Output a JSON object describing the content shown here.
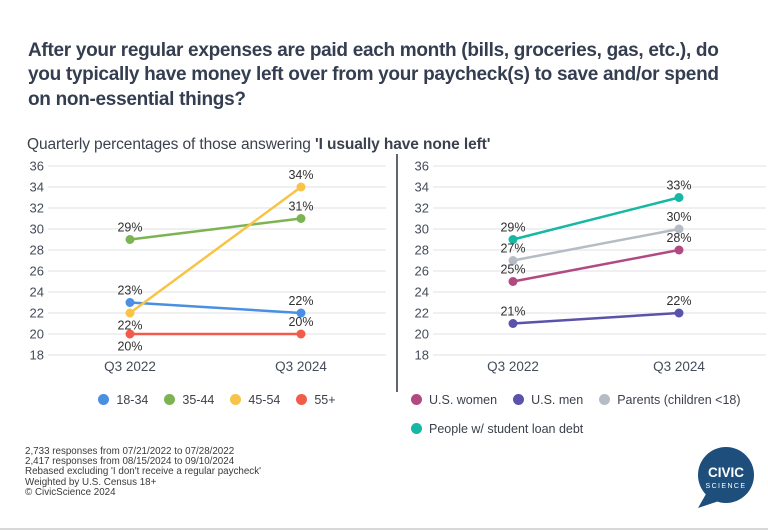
{
  "header": {
    "title": "After your regular expenses are paid each month (bills, groceries, gas, etc.), do you typically have money left over from your paycheck(s) to save and/or spend on non-essential things?",
    "subtitle_regular": "Quarterly percentages of those answering ",
    "subtitle_bold": "'I usually have none left'"
  },
  "chart_data": [
    {
      "type": "line",
      "title": "Age groups",
      "x": [
        "Q3 2022",
        "Q3 2024"
      ],
      "ylim": [
        18,
        36
      ],
      "ytick_step": 2,
      "grid": true,
      "legend_position": "bottom-center",
      "legend_rows": [
        [
          "18-34",
          "35-44",
          "45-54",
          "55+"
        ]
      ],
      "series": [
        {
          "name": "18-34",
          "color": "#4a8fe3",
          "values": [
            23,
            22
          ],
          "labels": [
            "23%",
            "22%"
          ],
          "label_pos": [
            "above",
            "above"
          ]
        },
        {
          "name": "35-44",
          "color": "#7cb454",
          "values": [
            29,
            31
          ],
          "labels": [
            "29%",
            "31%"
          ],
          "label_pos": [
            "above",
            "above"
          ]
        },
        {
          "name": "45-54",
          "color": "#f7c445",
          "values": [
            22,
            34
          ],
          "labels": [
            "22%",
            "34%"
          ],
          "label_pos": [
            "below",
            "above"
          ]
        },
        {
          "name": "55+",
          "color": "#f35c4b",
          "values": [
            20,
            20
          ],
          "labels": [
            "20%",
            "20%"
          ],
          "label_pos": [
            "below",
            "above"
          ]
        }
      ]
    },
    {
      "type": "line",
      "title": "Demographic groups",
      "x": [
        "Q3 2022",
        "Q3 2024"
      ],
      "ylim": [
        18,
        36
      ],
      "ytick_step": 2,
      "grid": true,
      "legend_position": "bottom-left",
      "legend_rows": [
        [
          "U.S. women",
          "U.S. men",
          "Parents (children <18)"
        ],
        [
          "People w/ student loan debt"
        ]
      ],
      "series": [
        {
          "name": "U.S. women",
          "color": "#b24a82",
          "values": [
            25,
            28
          ],
          "labels": [
            "25%",
            "28%"
          ],
          "label_pos": [
            "above",
            "above"
          ]
        },
        {
          "name": "U.S. men",
          "color": "#5b53a9",
          "values": [
            21,
            22
          ],
          "labels": [
            "21%",
            "22%"
          ],
          "label_pos": [
            "above",
            "above"
          ]
        },
        {
          "name": "Parents (children <18)",
          "color": "#b6bcc6",
          "values": [
            27,
            30
          ],
          "labels": [
            "27%",
            "30%"
          ],
          "label_pos": [
            "above",
            "above"
          ]
        },
        {
          "name": "People w/ student loan debt",
          "color": "#15b8a3",
          "values": [
            29,
            33
          ],
          "labels": [
            "29%",
            "33%"
          ],
          "label_pos": [
            "above",
            "above"
          ]
        }
      ]
    }
  ],
  "style": {
    "grid_color": "#e1e2e5",
    "tick_color": "#444c59",
    "data_label_color": "#303030"
  },
  "footnotes": [
    "2,733 responses from 07/21/2022 to 07/28/2022",
    "2,417 responses from 08/15/2024 to 09/10/2024",
    "Rebased excluding 'I don't receive a regular paycheck'",
    "Weighted by U.S. Census 18+",
    "© CivicScience 2024"
  ],
  "logo": {
    "line1": "CIVIC",
    "line2": "SCIENCE",
    "color": "#1d4e7c"
  }
}
